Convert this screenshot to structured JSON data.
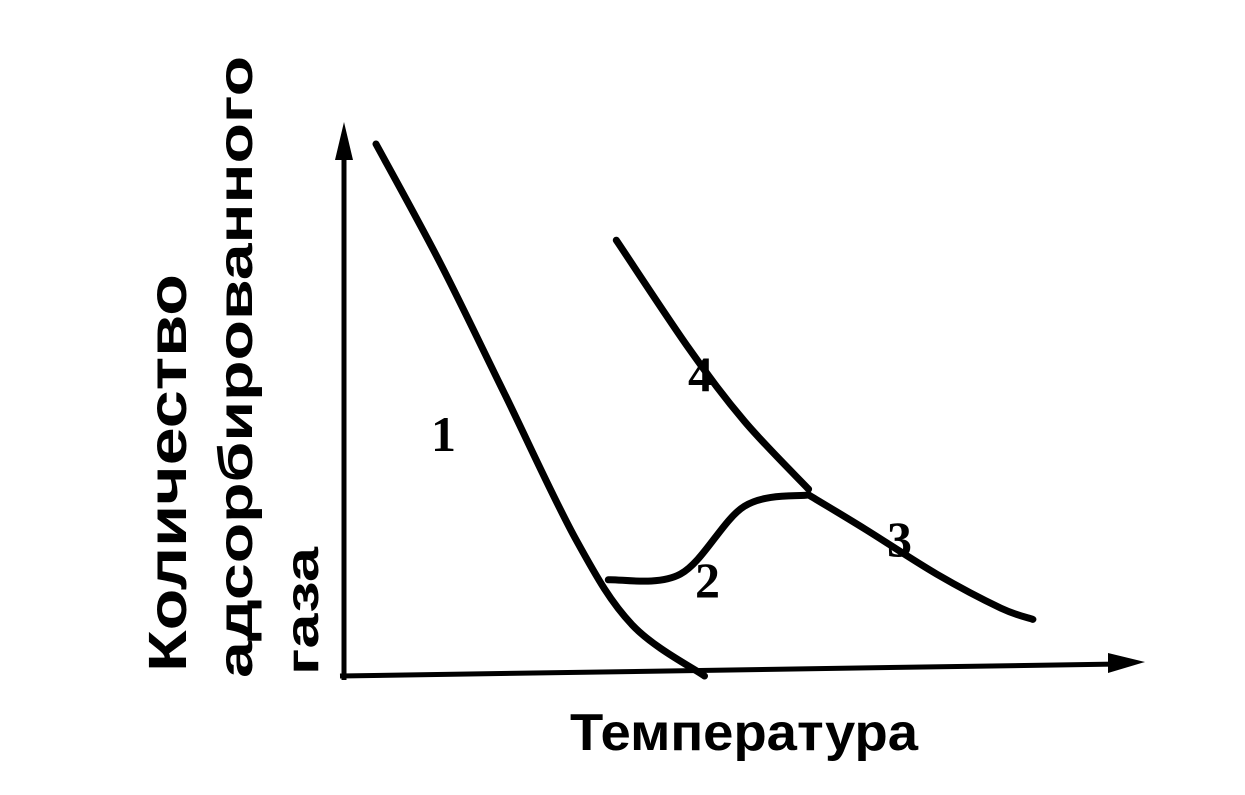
{
  "chart_data": {
    "type": "line",
    "title": "",
    "xlabel": "Температура",
    "ylabel_lines": [
      "Количество",
      "адсорбированного",
      "газа"
    ],
    "x_ticks": [],
    "y_ticks": [],
    "grid": false,
    "legend": "none",
    "series": [
      {
        "name": "1",
        "shape": [
          [
            0.04,
            0.94
          ],
          [
            0.12,
            0.73
          ],
          [
            0.2,
            0.5
          ],
          [
            0.29,
            0.24
          ],
          [
            0.36,
            0.09
          ],
          [
            0.45,
            0.0
          ]
        ]
      },
      {
        "name": "2",
        "shape": [
          [
            0.33,
            0.17
          ],
          [
            0.42,
            0.18
          ],
          [
            0.5,
            0.3
          ],
          [
            0.58,
            0.32
          ]
        ]
      },
      {
        "name": "3",
        "shape": [
          [
            0.58,
            0.32
          ],
          [
            0.65,
            0.26
          ],
          [
            0.74,
            0.18
          ],
          [
            0.82,
            0.12
          ],
          [
            0.86,
            0.1
          ]
        ]
      },
      {
        "name": "4",
        "shape": [
          [
            0.34,
            0.77
          ],
          [
            0.43,
            0.58
          ],
          [
            0.5,
            0.45
          ],
          [
            0.58,
            0.33
          ]
        ]
      }
    ]
  }
}
